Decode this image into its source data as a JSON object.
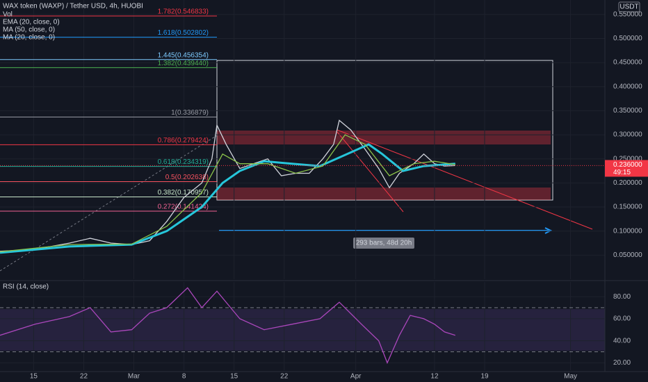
{
  "chart_data": [
    {
      "type": "line",
      "title": "WAX token (WAXP) / Tether USD, 4h, HUOBI",
      "indicators": [
        "Vol",
        "EMA (20, close, 0)",
        "MA (50, close, 0)",
        "MA (20, close, 0)"
      ],
      "currency": "USDT",
      "price_label": {
        "value": 0.236,
        "label": "0.236000"
      },
      "countdown": "49:15",
      "bars_note": "293 bars, 48d 20h",
      "xlim": [
        41.3,
        125.8
      ],
      "xticks": [
        {
          "value": 46,
          "label": "15"
        },
        {
          "value": 53,
          "label": "22"
        },
        {
          "value": 60,
          "label": "Mar"
        },
        {
          "value": 67,
          "label": "8"
        },
        {
          "value": 74,
          "label": "15"
        },
        {
          "value": 81,
          "label": "22"
        },
        {
          "value": 91,
          "label": "Apr"
        },
        {
          "value": 102,
          "label": "12"
        },
        {
          "value": 109,
          "label": "19"
        },
        {
          "value": 121,
          "label": "May"
        }
      ],
      "ylim": [
        0.0,
        0.58
      ],
      "yticks": [
        {
          "value": 0.05,
          "label": "0.050000"
        },
        {
          "value": 0.1,
          "label": "0.100000"
        },
        {
          "value": 0.15,
          "label": "0.150000"
        },
        {
          "value": 0.2,
          "label": "0.200000"
        },
        {
          "value": 0.25,
          "label": "0.250000"
        },
        {
          "value": 0.3,
          "label": "0.300000"
        },
        {
          "value": 0.35,
          "label": "0.350000"
        },
        {
          "value": 0.4,
          "label": "0.400000"
        },
        {
          "value": 0.45,
          "label": "0.450000"
        },
        {
          "value": 0.5,
          "label": "0.500000"
        },
        {
          "value": 0.55,
          "label": "0.550000"
        }
      ],
      "fib_levels": [
        {
          "value": 0.546833,
          "label": "1.782(0.546833)",
          "color": "#f23645"
        },
        {
          "value": 0.502802,
          "label": "1.618(0.502802)",
          "color": "#2196f3"
        },
        {
          "value": 0.456354,
          "label": "1.445(0.456354)",
          "color": "#7ecbff"
        },
        {
          "value": 0.43944,
          "label": "1.382(0.439440)",
          "color": "#4caf50"
        },
        {
          "value": 0.336879,
          "label": "1(0.336879)",
          "color": "#9598a1"
        },
        {
          "value": 0.279424,
          "label": "0.786(0.279424)",
          "color": "#f23645"
        },
        {
          "value": 0.234319,
          "label": "0.618(0.234319)",
          "color": "#22ab94"
        },
        {
          "value": 0.202638,
          "label": "0.5(0.202638)",
          "color": "#f7525f"
        },
        {
          "value": 0.170957,
          "label": "0.382(0.170957)",
          "color": "#c8e6c9"
        },
        {
          "value": 0.141424,
          "label": "0.272(0.141424)",
          "color": "#f06292"
        }
      ],
      "series": [
        {
          "name": "WAX token (WAXP) / Tether USD, 4h, HUOBI",
          "color": "#d1d4dc",
          "x": [
            41.3,
            46.2,
            51.0,
            53.9,
            56.8,
            59.7,
            62.2,
            64.6,
            67.0,
            69.5,
            70.9,
            71.6,
            72.9,
            74.8,
            76.7,
            78.7,
            80.6,
            82.6,
            84.5,
            86.4,
            87.9,
            88.7,
            90.3,
            92.3,
            94.2,
            95.7,
            97.1,
            99.1,
            100.5,
            102.0,
            103.4,
            104.9
          ],
          "values": [
            0.058,
            0.062,
            0.075,
            0.085,
            0.075,
            0.072,
            0.08,
            0.12,
            0.17,
            0.2,
            0.25,
            0.32,
            0.28,
            0.23,
            0.24,
            0.25,
            0.215,
            0.22,
            0.22,
            0.25,
            0.28,
            0.33,
            0.31,
            0.27,
            0.23,
            0.19,
            0.22,
            0.24,
            0.26,
            0.24,
            0.235,
            0.236
          ]
        },
        {
          "name": "MA (50, close, 0)",
          "color": "#26c6da",
          "x": [
            41.3,
            51.0,
            59.7,
            64.6,
            69.5,
            72.4,
            74.8,
            78.2,
            82.1,
            86.0,
            89.8,
            92.8,
            94.7,
            97.6,
            100.5,
            104.9
          ],
          "values": [
            0.055,
            0.068,
            0.072,
            0.1,
            0.15,
            0.2,
            0.225,
            0.245,
            0.24,
            0.235,
            0.26,
            0.28,
            0.26,
            0.225,
            0.235,
            0.24
          ]
        },
        {
          "name": "MA (20, close, 0)",
          "color": "#8bc34a",
          "x": [
            41.3,
            51.0,
            59.7,
            64.6,
            69.5,
            72.4,
            74.8,
            78.7,
            82.6,
            86.4,
            89.5,
            92.3,
            95.7,
            99.1,
            102.0,
            104.9
          ],
          "values": [
            0.057,
            0.072,
            0.073,
            0.11,
            0.18,
            0.26,
            0.24,
            0.24,
            0.22,
            0.235,
            0.3,
            0.28,
            0.215,
            0.24,
            0.245,
            0.238
          ]
        }
      ]
    },
    {
      "type": "line",
      "title": "RSI (14, close)",
      "xlim": [
        41.3,
        125.8
      ],
      "ylim": [
        13.3,
        93.3
      ],
      "yticks": [
        {
          "value": 20,
          "label": "20.00"
        },
        {
          "value": 40,
          "label": "40.00"
        },
        {
          "value": 60,
          "label": "60.00"
        },
        {
          "value": 80,
          "label": "80.00"
        }
      ],
      "bands": [
        30,
        70
      ],
      "series": [
        {
          "name": "RSI (14, close)",
          "color": "#ab47bc",
          "x": [
            41.3,
            46.2,
            51.0,
            53.9,
            56.8,
            59.7,
            62.2,
            64.6,
            67.5,
            69.5,
            71.6,
            74.8,
            78.2,
            82.1,
            86.0,
            88.7,
            91.8,
            94.2,
            95.4,
            97.1,
            98.6,
            100.5,
            102.0,
            103.4,
            104.9
          ],
          "values": [
            45,
            55,
            62,
            70,
            48,
            50,
            65,
            70,
            88,
            70,
            85,
            60,
            50,
            55,
            60,
            75,
            55,
            40,
            20,
            45,
            63,
            60,
            55,
            48,
            45
          ]
        }
      ]
    }
  ]
}
